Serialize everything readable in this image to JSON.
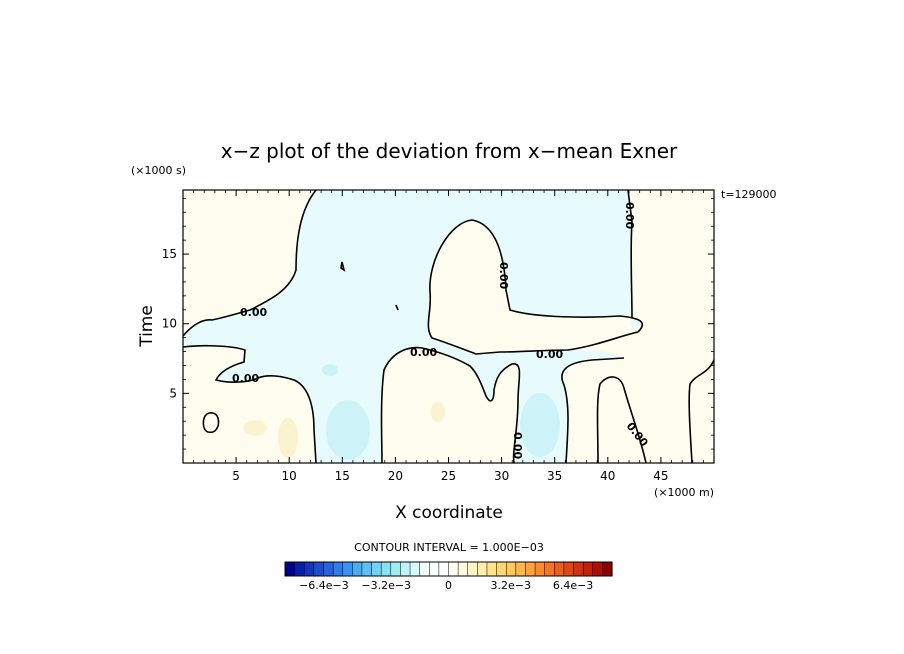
{
  "chart_data": {
    "type": "contour",
    "title": "x−z plot of the deviation from x−mean Exner",
    "time_label": "t=129000",
    "xlabel": "X coordinate",
    "ylabel": "Time",
    "x_unit": "(×1000 m)",
    "y_unit": "(×1000 s)",
    "xlim": [
      0,
      50
    ],
    "ylim": [
      0,
      19.6
    ],
    "x_ticks": [
      5,
      10,
      15,
      20,
      25,
      30,
      35,
      40,
      45
    ],
    "x_tick_labels": [
      "5",
      "10",
      "15",
      "20",
      "25",
      "30",
      "35",
      "40",
      "45"
    ],
    "y_ticks": [
      5,
      10,
      15
    ],
    "y_tick_labels": [
      "5",
      "10",
      "15"
    ],
    "contour_interval_text": "CONTOUR INTERVAL = 1.000E−03",
    "contour_level_label": "0.00",
    "colorbar": {
      "min": -0.0084,
      "max": 0.0084,
      "tick_values": [
        -0.0064,
        -0.0032,
        0,
        0.0032,
        0.0064
      ],
      "tick_labels": [
        "−6.4e−3",
        "−3.2e−3",
        "0",
        "3.2e−3",
        "6.4e−3"
      ],
      "colors": [
        "#00008b",
        "#0a1fa3",
        "#1435bb",
        "#1e4ccf",
        "#2663de",
        "#2f7be8",
        "#3b93ef",
        "#4aaaf2",
        "#5cc0f4",
        "#70d2f4",
        "#88e0f4",
        "#a3ebf5",
        "#bff3f8",
        "#d8f9fa",
        "#eefcfc",
        "#fbfeff",
        "#ffffff",
        "#fffff4",
        "#fffbe0",
        "#fff5c4",
        "#ffeea8",
        "#ffe48c",
        "#ffd873",
        "#ffc85d",
        "#ffb64b",
        "#ffa23c",
        "#fc8b2f",
        "#f57425",
        "#ec5d1d",
        "#e14617",
        "#d33212",
        "#c21f0d",
        "#ae0e09",
        "#900000"
      ]
    },
    "fill_colors": {
      "negative": "#e8fbfc",
      "positive": "#fefdf0",
      "weak_negative": "#cdf3f8",
      "weak_positive": "#fbf3cf"
    }
  }
}
